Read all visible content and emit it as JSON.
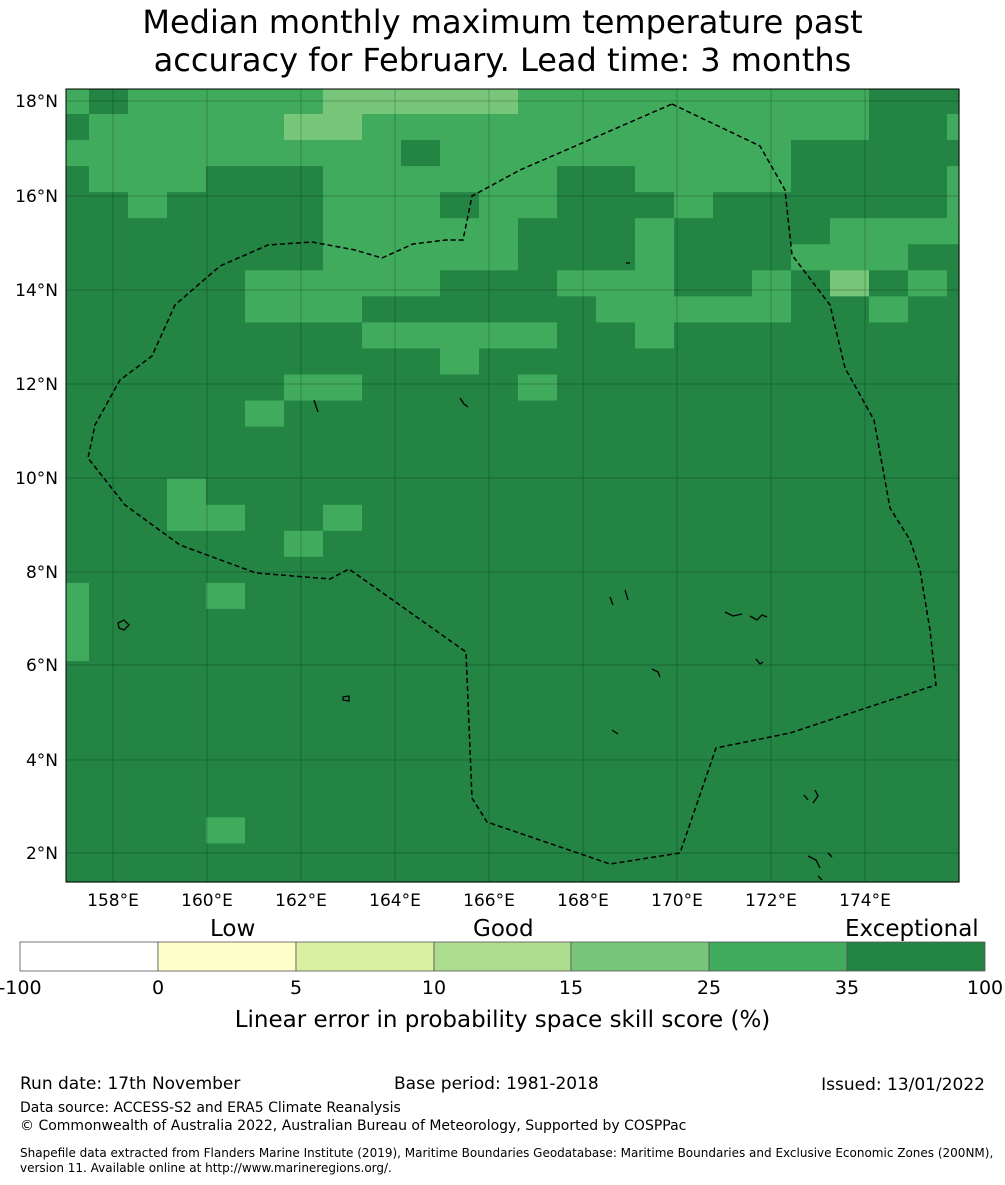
{
  "title": {
    "line1": "Median monthly maximum temperature past",
    "line2": "accuracy for February. Lead time: 3 months"
  },
  "map": {
    "lat_labels": [
      "18°N",
      "16°N",
      "14°N",
      "12°N",
      "10°N",
      "8°N",
      "6°N",
      "4°N",
      "2°N"
    ],
    "lon_labels": [
      "158°E",
      "160°E",
      "162°E",
      "164°E",
      "166°E",
      "168°E",
      "170°E",
      "172°E",
      "174°E"
    ],
    "colors": {
      "exceptional": "#238443",
      "very_good": "#41ab5d",
      "good_high": "#78c679",
      "land": "#000000"
    },
    "boundary_style": "dashed",
    "grid": true
  },
  "colorbar": {
    "category_labels": {
      "low": "Low",
      "good": "Good",
      "exceptional": "Exceptional"
    },
    "ticks": [
      "-100",
      "0",
      "5",
      "10",
      "15",
      "25",
      "35",
      "100"
    ],
    "colors": [
      "#ffffff",
      "#ffffcc",
      "#d9f0a3",
      "#addd8e",
      "#78c679",
      "#41ab5d",
      "#238443"
    ],
    "label": "Linear error in probability space skill score (%)"
  },
  "footer": {
    "run_date": "Run date: 17th November",
    "base_period": "Base period: 1981-2018",
    "issued": "Issued: 13/01/2022",
    "data_source": "Data source: ACCESS-S2 and ERA5 Climate Reanalysis",
    "copyright": "© Commonwealth of Australia 2022, Australian Bureau of Meteorology, Supported by COSPPac",
    "shapefile_line1": "Shapefile data extracted from Flanders Marine Institute (2019), Maritime Boundaries Geodatabase: Maritime Boundaries and Exclusive Economic Zones (200NM),",
    "shapefile_line2": "version 11. Available online at http://www.marineregions.org/."
  }
}
